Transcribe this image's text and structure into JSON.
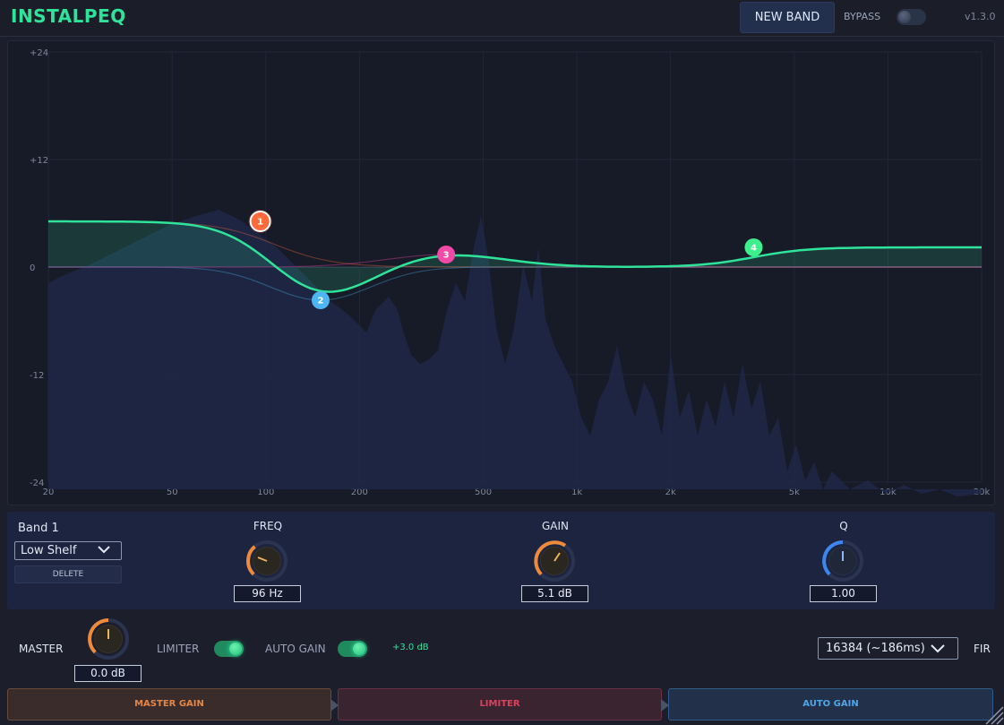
{
  "header": {
    "app_title": "INSTALPEQ",
    "new_band_label": "NEW BAND",
    "bypass_label": "BYPASS",
    "bypass_on": false,
    "version": "v1.3.0"
  },
  "eq": {
    "db_labels": [
      "+24",
      "+12",
      "0",
      "-12",
      "-24"
    ],
    "freq_labels": [
      "20",
      "50",
      "100",
      "200",
      "500",
      "1k",
      "2k",
      "5k",
      "10k",
      "20k"
    ],
    "bands": [
      {
        "id": "1",
        "freq_hz": 96,
        "gain_db": 5.1,
        "color": "#ff6a3d"
      },
      {
        "id": "2",
        "freq_hz": 150,
        "gain_db": -3.7,
        "color": "#4db6f2"
      },
      {
        "id": "3",
        "freq_hz": 380,
        "gain_db": 1.4,
        "color": "#f24aa6"
      },
      {
        "id": "4",
        "freq_hz": 3700,
        "gain_db": 2.2,
        "color": "#3ef08c"
      }
    ],
    "curve_color": "#2fe39a"
  },
  "band_editor": {
    "title": "Band 1",
    "type": "Low Shelf",
    "delete_label": "DELETE",
    "freq_label": "FREQ",
    "freq_value": "96 Hz",
    "gain_label": "GAIN",
    "gain_value": "5.1 dB",
    "q_label": "Q",
    "q_value": "1.00"
  },
  "master": {
    "label": "MASTER",
    "value": "0.0 dB",
    "limiter_label": "LIMITER",
    "limiter_on": true,
    "auto_gain_label": "AUTO GAIN",
    "auto_gain_on": true,
    "auto_gain_value": "+3.0 dB",
    "fir_option": "16384 (~186ms)",
    "fir_label": "FIR"
  },
  "chain": {
    "master_gain_label": "MASTER GAIN",
    "limiter_label": "LIMITER",
    "auto_gain_label": "AUTO GAIN"
  }
}
